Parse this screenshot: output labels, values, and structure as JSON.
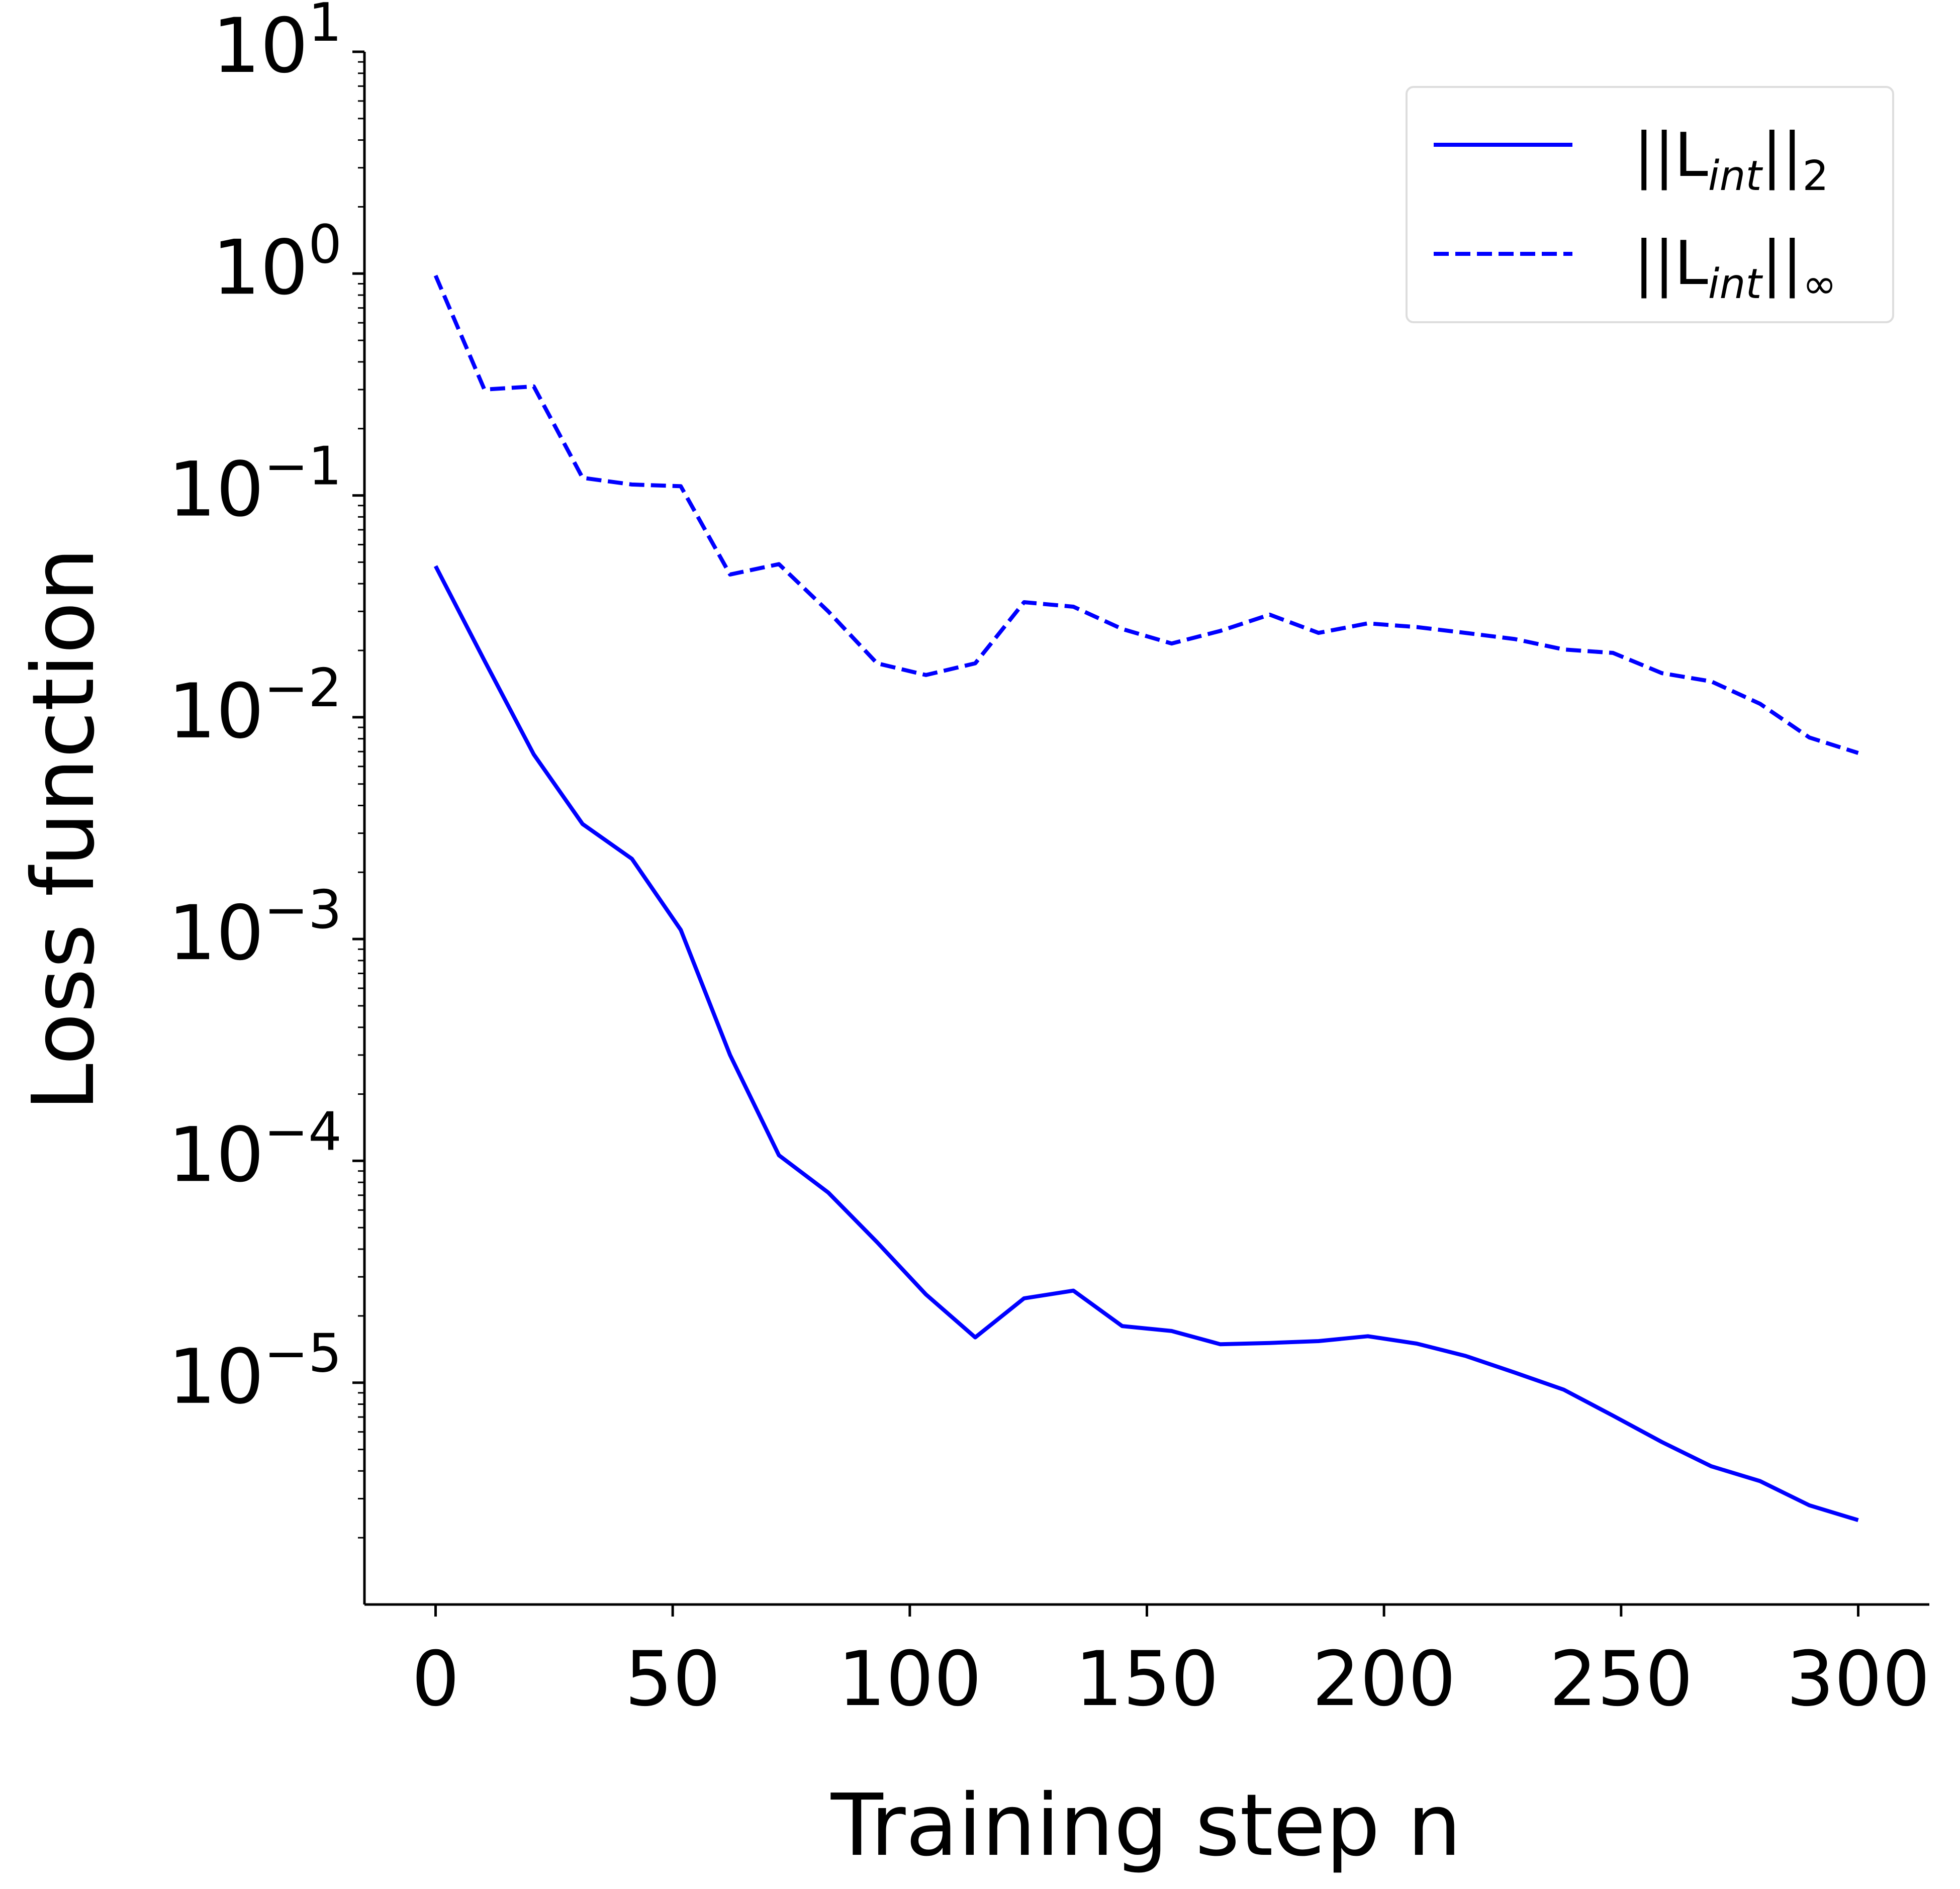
{
  "chart_data": {
    "type": "line",
    "xlabel": "Training step n",
    "ylabel": "Loss function",
    "yscale": "log",
    "xlim": [
      -15,
      315
    ],
    "ylim": [
      1e-06,
      10
    ],
    "grid": false,
    "legend_position": "top-right",
    "x_ticks": [
      {
        "value": 0,
        "label": "0"
      },
      {
        "value": 50,
        "label": "50"
      },
      {
        "value": 100,
        "label": "100"
      },
      {
        "value": 150,
        "label": "150"
      },
      {
        "value": 200,
        "label": "200"
      },
      {
        "value": 250,
        "label": "250"
      },
      {
        "value": 300,
        "label": "300"
      }
    ],
    "y_ticks": [
      {
        "value": 10,
        "base": "10",
        "exp": "1"
      },
      {
        "value": 1,
        "base": "10",
        "exp": "0"
      },
      {
        "value": 0.1,
        "base": "10",
        "exp": "−1"
      },
      {
        "value": 0.01,
        "base": "10",
        "exp": "−2"
      },
      {
        "value": 0.001,
        "base": "10",
        "exp": "−3"
      },
      {
        "value": 0.0001,
        "base": "10",
        "exp": "−4"
      },
      {
        "value": 1e-05,
        "base": "10",
        "exp": "−5"
      }
    ],
    "x": [
      0,
      10.3,
      20.7,
      31,
      41.4,
      51.7,
      62.1,
      72.4,
      82.8,
      93.1,
      103.4,
      113.8,
      124.1,
      134.5,
      144.8,
      155.2,
      165.5,
      175.9,
      186.2,
      196.6,
      206.9,
      217.2,
      227.6,
      237.9,
      248.3,
      258.6,
      269,
      279.3,
      289.7,
      300
    ],
    "series": [
      {
        "name_main": "||L",
        "name_sub": "int",
        "name_tail": "||",
        "name_tail_sub": "2",
        "style": "solid",
        "color": "#0000ff",
        "values": [
          0.048,
          0.018,
          0.0068,
          0.0033,
          0.0023,
          0.0011,
          0.0003,
          0.000106,
          7.2e-05,
          4.3e-05,
          2.5e-05,
          1.6e-05,
          2.4e-05,
          2.6e-05,
          1.8e-05,
          1.71e-05,
          1.49e-05,
          1.51e-05,
          1.54e-05,
          1.62e-05,
          1.5e-05,
          1.32e-05,
          1.11e-05,
          9.3e-06,
          7.1e-06,
          5.4e-06,
          4.2e-06,
          3.6e-06,
          2.8e-06,
          2.4e-06
        ]
      },
      {
        "name_main": "||L",
        "name_sub": "int",
        "name_tail": "||",
        "name_tail_sub": "∞",
        "style": "dashed",
        "color": "#0000ff",
        "values": [
          0.98,
          0.3,
          0.31,
          0.12,
          0.112,
          0.11,
          0.044,
          0.049,
          0.03,
          0.0175,
          0.0155,
          0.0175,
          0.033,
          0.0315,
          0.025,
          0.0215,
          0.0245,
          0.029,
          0.024,
          0.0265,
          0.0255,
          0.024,
          0.0225,
          0.0202,
          0.0195,
          0.0158,
          0.0145,
          0.0115,
          0.0081,
          0.0069
        ]
      }
    ]
  }
}
